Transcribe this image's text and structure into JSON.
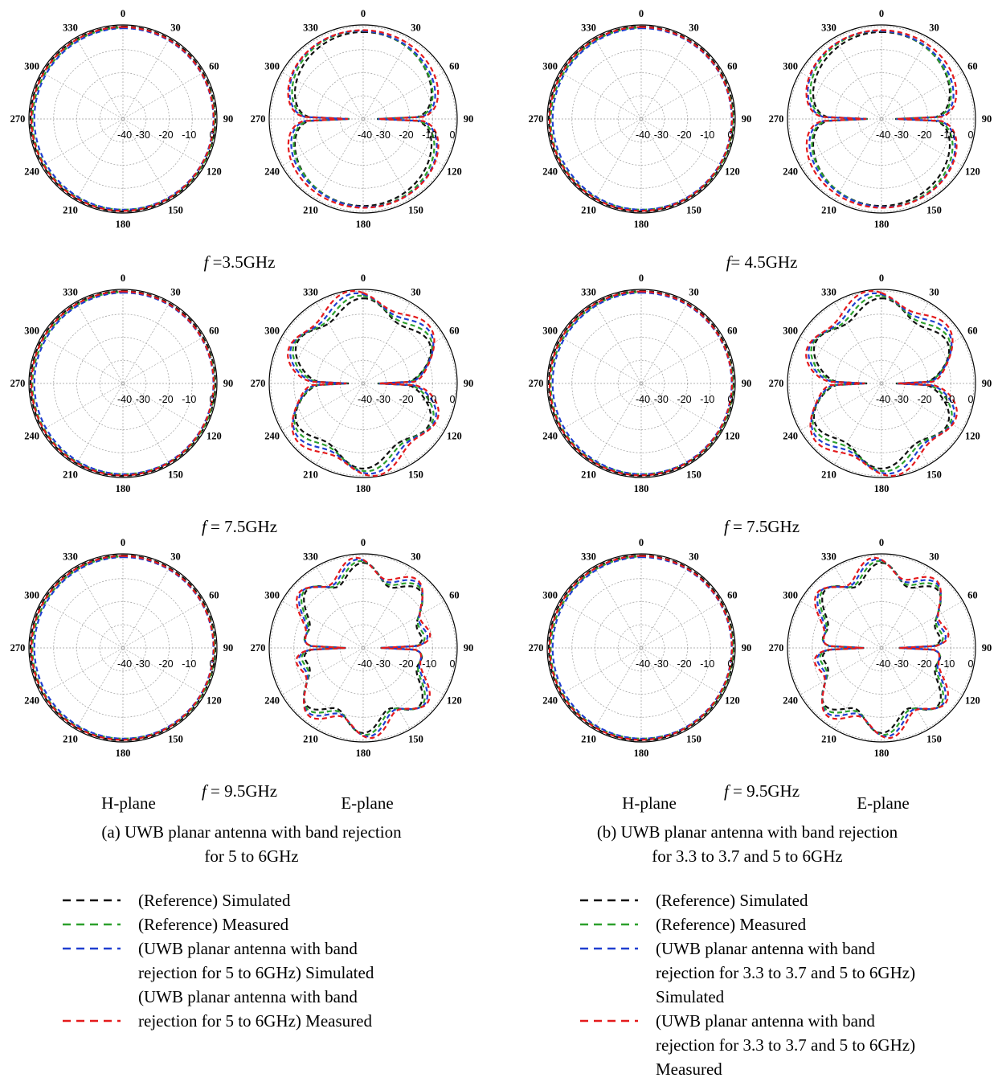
{
  "chart_data": {
    "type": "polar",
    "angle_ticks": [
      "0",
      "30",
      "60",
      "90",
      "120",
      "150",
      "180",
      "210",
      "240",
      "270",
      "300",
      "330"
    ],
    "radial_ticks": [
      "-40",
      "-30",
      "-20",
      "-10",
      "0"
    ],
    "radial_range": [
      -40,
      0
    ],
    "plane_labels": [
      "H-plane",
      "E-plane"
    ],
    "series_colors": [
      "#111111",
      "#2ca02c",
      "#1f3fd0",
      "#e41a1c"
    ],
    "panels": [
      {
        "caption_lines": [
          "(a) UWB planar antenna with band rejection",
          "for 5 to 6GHz"
        ],
        "rows": [
          {
            "freq_prefix": "f",
            "freq_value": " =3.5GHz"
          },
          {
            "freq_prefix": "f",
            "freq_value": " = 7.5GHz"
          },
          {
            "freq_prefix": "f",
            "freq_value": " = 9.5GHz"
          }
        ],
        "legend": [
          {
            "lines": [
              "(Reference) Simulated"
            ]
          },
          {
            "lines": [
              "(Reference) Measured"
            ]
          },
          {
            "lines": [
              "(UWB planar antenna with band",
              "rejection for 5 to 6GHz) Simulated"
            ]
          },
          {
            "lines": [
              "(UWB planar antenna with band",
              "rejection for 5 to 6GHz) Measured"
            ]
          }
        ]
      },
      {
        "caption_lines": [
          "(b) UWB planar antenna with band rejection",
          "for 3.3 to 3.7 and 5 to 6GHz"
        ],
        "rows": [
          {
            "freq_prefix": "f",
            "freq_value": "= 4.5GHz"
          },
          {
            "freq_prefix": "f",
            "freq_value": " = 7.5GHz"
          },
          {
            "freq_prefix": "f",
            "freq_value": " = 9.5GHz"
          }
        ],
        "legend": [
          {
            "lines": [
              "(Reference) Simulated"
            ]
          },
          {
            "lines": [
              "(Reference) Measured"
            ]
          },
          {
            "lines": [
              "(UWB planar antenna with band",
              "rejection for 3.3 to 3.7 and 5 to 6GHz)",
              "Simulated"
            ]
          },
          {
            "lines": [
              "(UWB planar antenna with band",
              "rejection for 3.3 to 3.7 and 5 to 6GHz)",
              "Measured"
            ]
          }
        ]
      }
    ]
  }
}
